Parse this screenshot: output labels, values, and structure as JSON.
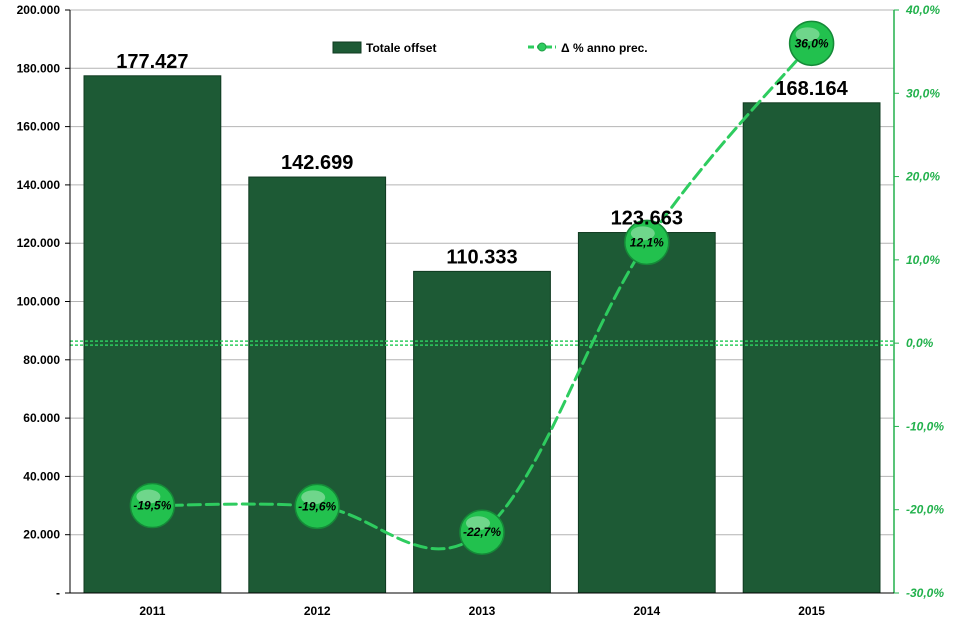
{
  "chart_data": {
    "type": "bar",
    "categories": [
      "2011",
      "2012",
      "2013",
      "2014",
      "2015"
    ],
    "series": [
      {
        "name": "Totale offset",
        "axis": "left",
        "kind": "bar",
        "values": [
          177427,
          142699,
          110333,
          123663,
          168164
        ],
        "labels": [
          "177.427",
          "142.699",
          "110.333",
          "123.663",
          "168.164"
        ]
      },
      {
        "name": "Δ % anno prec.",
        "axis": "right",
        "kind": "line",
        "values": [
          -19.5,
          -19.6,
          -22.7,
          12.1,
          36.0
        ],
        "labels": [
          "-19,5%",
          "-19,6%",
          "-22,7%",
          "12,1%",
          "36,0%"
        ]
      }
    ],
    "y_left": {
      "ylim": [
        0,
        200000
      ],
      "ticks": [
        0,
        20000,
        40000,
        60000,
        80000,
        100000,
        120000,
        140000,
        160000,
        180000,
        200000
      ],
      "tick_labels": [
        "-",
        "20.000",
        "40.000",
        "60.000",
        "80.000",
        "100.000",
        "120.000",
        "140.000",
        "160.000",
        "180.000",
        "200.000"
      ]
    },
    "y_right": {
      "ylim": [
        -30,
        40
      ],
      "ticks": [
        -30,
        -20,
        -10,
        0,
        10,
        20,
        30,
        40
      ],
      "tick_labels": [
        "-30,0%",
        "-20,0%",
        "-10,0%",
        "0,0%",
        "10,0%",
        "20,0%",
        "30,0%",
        "40,0%"
      ]
    },
    "legend_position": "top-center",
    "grid": true,
    "colors": {
      "bar": "#1d5a35",
      "line": "#2ecc5f",
      "right_axis": "#22b14c"
    }
  }
}
